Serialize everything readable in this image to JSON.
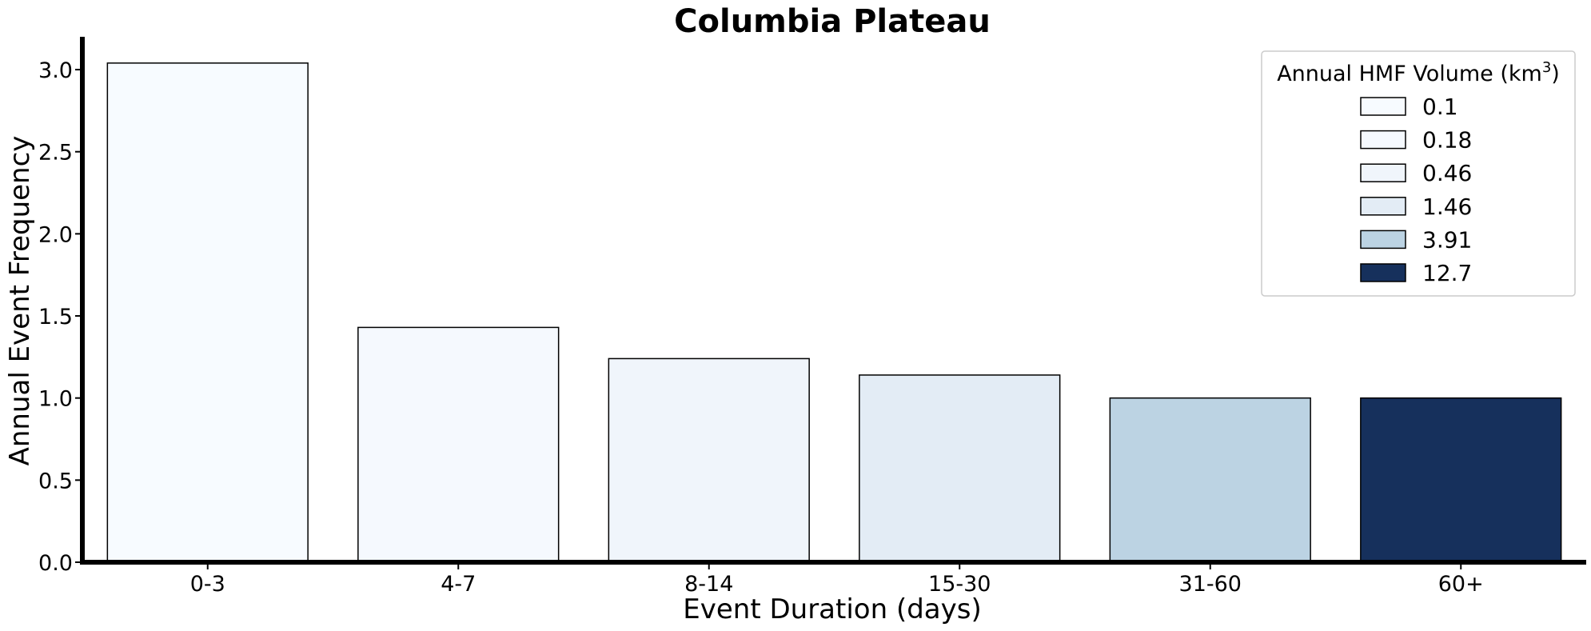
{
  "chart_data": {
    "type": "bar",
    "title": "Columbia Plateau",
    "xlabel": "Event Duration (days)",
    "ylabel": "Annual Event Frequency",
    "categories": [
      "0-3",
      "4-7",
      "8-14",
      "15-30",
      "31-60",
      "60+"
    ],
    "values": [
      3.04,
      1.43,
      1.24,
      1.14,
      1.0,
      1.0
    ],
    "bar_colors": [
      "#f7fbff",
      "#f5f9fe",
      "#f0f5fb",
      "#e3ecf5",
      "#bcd3e3",
      "#16305c"
    ],
    "ylim": [
      0,
      3.2
    ],
    "yticks": [
      "0.0",
      "0.5",
      "1.0",
      "1.5",
      "2.0",
      "2.5",
      "3.0"
    ],
    "grid": false,
    "legend": {
      "title": "Annual HMF Volume (km",
      "title_superscript": "3",
      "title_close": ")",
      "placement": "top-right",
      "entries": [
        {
          "label": "0.1",
          "color": "#f7fbff"
        },
        {
          "label": "0.18",
          "color": "#f5f9fe"
        },
        {
          "label": "0.46",
          "color": "#f0f5fb"
        },
        {
          "label": "1.46",
          "color": "#e3ecf5"
        },
        {
          "label": "3.91",
          "color": "#bcd3e3"
        },
        {
          "label": "12.7",
          "color": "#16305c"
        }
      ]
    }
  }
}
